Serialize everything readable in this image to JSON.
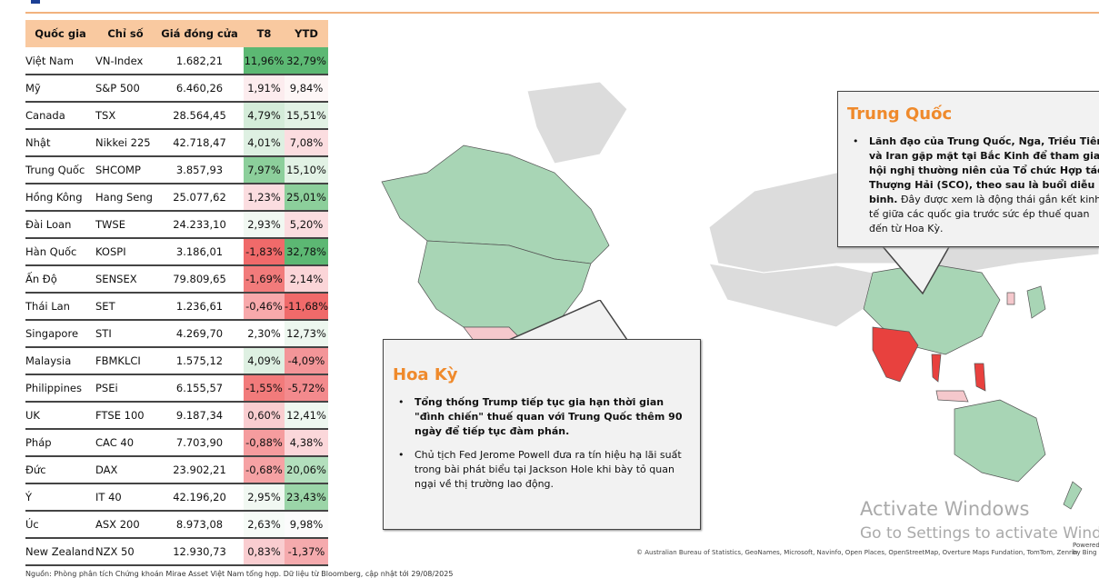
{
  "table": {
    "headers": [
      "Quốc gia",
      "Chỉ số",
      "Giá đóng cửa",
      "T8",
      "YTD"
    ],
    "rows": [
      {
        "country": "Việt Nam",
        "index": "VN-Index",
        "close": "1.682,21",
        "t8": "11,96%",
        "ytd": "32,79%",
        "t8_color": "#5cb873",
        "ytd_color": "#5cb873"
      },
      {
        "country": "Mỹ",
        "index": "S&P 500",
        "close": "6.460,26",
        "t8": "1,91%",
        "ytd": "9,84%",
        "t8_color": "#fcecee",
        "ytd_color": "#fdf6f6"
      },
      {
        "country": "Canada",
        "index": "TSX",
        "close": "28.564,45",
        "t8": "4,79%",
        "ytd": "15,51%",
        "t8_color": "#d4ecd9",
        "ytd_color": "#e2f2e5"
      },
      {
        "country": "Nhật",
        "index": "Nikkei 225",
        "close": "42.718,47",
        "t8": "4,01%",
        "ytd": "7,08%",
        "t8_color": "#def0e2",
        "ytd_color": "#fbdde0"
      },
      {
        "country": "Trung Quốc",
        "index": "SHCOMP",
        "close": "3.857,93",
        "t8": "7,97%",
        "ytd": "15,10%",
        "t8_color": "#8ccf9b",
        "ytd_color": "#e2f2e5"
      },
      {
        "country": "Hồng Kông",
        "index": "Hang Seng",
        "close": "25.077,62",
        "t8": "1,23%",
        "ytd": "25,01%",
        "t8_color": "#fbdde0",
        "ytd_color": "#8ccf9b"
      },
      {
        "country": "Đài Loan",
        "index": "TWSE",
        "close": "24.233,10",
        "t8": "2,93%",
        "ytd": "5,20%",
        "t8_color": "#f1f8f2",
        "ytd_color": "#fbdde0"
      },
      {
        "country": "Hàn Quốc",
        "index": "KOSPI",
        "close": "3.186,01",
        "t8": "-1,83%",
        "ytd": "32,78%",
        "t8_color": "#f06a6a",
        "ytd_color": "#5cb873"
      },
      {
        "country": "Ấn Độ",
        "index": "SENSEX",
        "close": "79.809,65",
        "t8": "-1,69%",
        "ytd": "2,14%",
        "t8_color": "#f27b7b",
        "ytd_color": "#fbd5d8"
      },
      {
        "country": "Thái Lan",
        "index": "SET",
        "close": "1.236,61",
        "t8": "-0,46%",
        "ytd": "-11,68%",
        "t8_color": "#f8a9ab",
        "ytd_color": "#f06a6a"
      },
      {
        "country": "Singapore",
        "index": "STI",
        "close": "4.269,70",
        "t8": "2,30%",
        "ytd": "12,73%",
        "t8_color": "#ffffff",
        "ytd_color": "#edf7ef"
      },
      {
        "country": "Malaysia",
        "index": "FBMKLCI",
        "close": "1.575,12",
        "t8": "4,09%",
        "ytd": "-4,09%",
        "t8_color": "#def0e2",
        "ytd_color": "#f39598"
      },
      {
        "country": "Philippines",
        "index": "PSEi",
        "close": "6.155,57",
        "t8": "-1,55%",
        "ytd": "-5,72%",
        "t8_color": "#f27b7b",
        "ytd_color": "#f38a8d"
      },
      {
        "country": "UK",
        "index": "FTSE 100",
        "close": "9.187,34",
        "t8": "0,60%",
        "ytd": "12,41%",
        "t8_color": "#f9cdd0",
        "ytd_color": "#eef7f0"
      },
      {
        "country": "Pháp",
        "index": "CAC 40",
        "close": "7.703,90",
        "t8": "-0,88%",
        "ytd": "4,38%",
        "t8_color": "#f59c9e",
        "ytd_color": "#fbd7da"
      },
      {
        "country": "Đức",
        "index": "DAX",
        "close": "23.902,21",
        "t8": "-0,68%",
        "ytd": "20,06%",
        "t8_color": "#f6a2a4",
        "ytd_color": "#b3dfbd"
      },
      {
        "country": "Ý",
        "index": "IT 40",
        "close": "42.196,20",
        "t8": "2,95%",
        "ytd": "23,43%",
        "t8_color": "#f1f8f2",
        "ytd_color": "#9bd5a8"
      },
      {
        "country": "Úc",
        "index": "ASX 200",
        "close": "8.973,08",
        "t8": "2,63%",
        "ytd": "9,98%",
        "t8_color": "#f6fbf7",
        "ytd_color": "#fbfbfb"
      },
      {
        "country": "New Zealand",
        "index": "NZX 50",
        "close": "12.930,73",
        "t8": "0,83%",
        "ytd": "-1,37%",
        "t8_color": "#f9cdd0",
        "ytd_color": "#f5aaad"
      }
    ]
  },
  "callouts": {
    "us": {
      "title": "Hoa Kỳ",
      "bullets": [
        {
          "bold": "Tổng thống Trump tiếp tục gia hạn thời gian \"đình chiến\" thuế quan với Trung Quốc thêm 90 ngày để tiếp tục đàm phán.",
          "normal": ""
        },
        {
          "bold": "",
          "normal": "Chủ tịch Fed Jerome Powell đưa ra tín hiệu hạ lãi suất trong bài phát biểu tại Jackson Hole khi bày tỏ quan ngại về thị trường lao động."
        }
      ]
    },
    "china": {
      "title": "Trung Quốc",
      "bullets": [
        {
          "bold": "Lãnh đạo của Trung Quốc, Nga, Triều Tiên và Iran gặp mặt tại Bắc Kinh để tham gia hội nghị thường niên của Tổ chức Hợp tác Thượng Hải (SCO), theo sau là buổi diễu binh.",
          "normal": " Đây được xem là động thái gắn kết kinh tế giữa các quốc gia trước sức ép thuế quan đến từ Hoa Kỳ."
        }
      ]
    }
  },
  "watermark": {
    "line1": "Activate Windows",
    "line2": "Go to Settings to activate Windows."
  },
  "map_credit": "© Australian Bureau of Statistics, GeoNames, Microsoft, Navinfo, Open Places, OpenStreetMap, Overture Maps Fundation, TomTom, Zenrin",
  "powered_by": "Powered by Bing",
  "source": "Nguồn: Phòng phân tích Chứng khoán Mirae Asset Việt Nam tổng hợp. Dữ liệu từ Bloomberg, cập nhật tới 29/08/2025",
  "colors": {
    "accent": "#ef8a2c",
    "header_bg": "#f9c9a0",
    "map_green": "#a8d5b5",
    "map_red": "#e8413e",
    "map_gray": "#dcdcdc"
  }
}
